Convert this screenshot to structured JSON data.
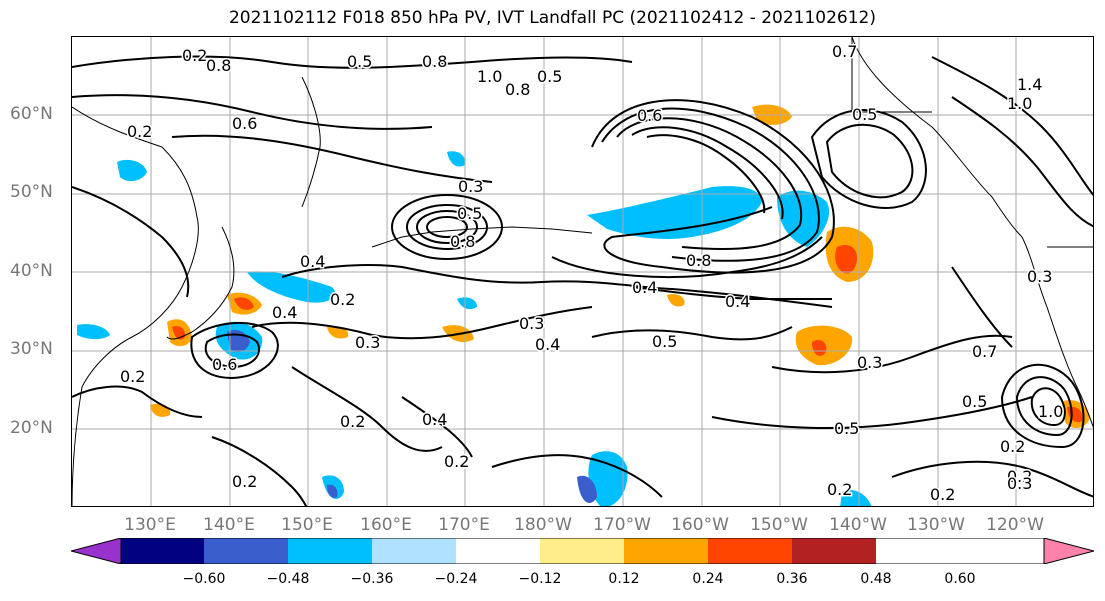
{
  "title": "2021102112 F018 850 hPa PV, IVT Landfall PC (2021102412 - 2021102612)",
  "lat_labels": [
    "60°N",
    "50°N",
    "40°N",
    "30°N",
    "20°N"
  ],
  "lon_labels": [
    "130°E",
    "140°E",
    "150°E",
    "160°E",
    "170°E",
    "180°W",
    "170°W",
    "160°W",
    "150°W",
    "140°W",
    "130°W",
    "120°W"
  ],
  "colorbar": {
    "colors": [
      "#9932cc",
      "#000080",
      "#3a5fcd",
      "#00bfff",
      "#b0e2ff",
      "#ffffff",
      "#ffec8b",
      "#ffa500",
      "#ff4500",
      "#b22222",
      "#ff82ab"
    ],
    "ticks": [
      "−0.60",
      "−0.48",
      "−0.36",
      "−0.24",
      "−0.12",
      "0.12",
      "0.24",
      "0.36",
      "0.48",
      "0.60"
    ]
  },
  "contour_labels": [
    "0.8",
    "0.5",
    "0.8",
    "1.0",
    "0.5",
    "0.8",
    "0.2",
    "0.6",
    "0.3",
    "0.5",
    "0.8",
    "0.4",
    "0.2",
    "0.4",
    "0.6",
    "0.3",
    "0.3",
    "0.4",
    "0.5",
    "0.4",
    "0.8",
    "0.4",
    "0.2",
    "0.2",
    "0.4",
    "0.3",
    "0.5",
    "0.2",
    "0.2",
    "0.7",
    "1.4",
    "1.0",
    "0.5",
    "0.3",
    "0.7",
    "0.5",
    "1.0",
    "0.2",
    "0.2",
    "0.3",
    "0.2",
    "0.2",
    "0.2",
    "0.6"
  ]
}
